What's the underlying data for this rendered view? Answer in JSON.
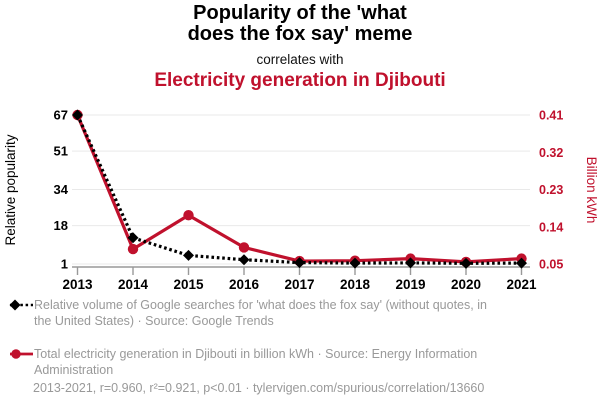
{
  "header": {
    "title_lines": [
      "Popularity of the 'what",
      "does the fox say' meme"
    ],
    "connector": "correlates with",
    "subtitle": "Electricity generation in Djibouti"
  },
  "chart_data": {
    "type": "line",
    "x": [
      2013,
      2014,
      2015,
      2016,
      2017,
      2018,
      2019,
      2020,
      2021
    ],
    "series": [
      {
        "name": "fox-search-popularity",
        "axis": "left",
        "color": "#000000",
        "style": "dotted",
        "marker": "diamond",
        "values": [
          67,
          12.6,
          4.8,
          2.9,
          1.6,
          1.4,
          1.5,
          1.3,
          1.4
        ]
      },
      {
        "name": "electricity-generation",
        "axis": "right",
        "color": "#c0112d",
        "style": "solid",
        "marker": "circle",
        "values": [
          0.41,
          0.086,
          0.168,
          0.09,
          0.057,
          0.058,
          0.063,
          0.055,
          0.063
        ]
      }
    ],
    "left_axis": {
      "label": "Relative popularity",
      "ticks": [
        1,
        18,
        34,
        51,
        67
      ],
      "range": [
        1,
        67
      ]
    },
    "right_axis": {
      "label": "Billion kWh",
      "ticks": [
        0.05,
        0.14,
        0.23,
        0.32,
        0.41
      ],
      "range": [
        0.05,
        0.41
      ]
    },
    "grid": true,
    "legend_position": "bottom"
  },
  "legend": {
    "entries": [
      {
        "label": "Relative volume of Google searches for 'what does the fox say' (without quotes, in the United States) · Source: Google Trends",
        "marker": "black-diamond-dotted"
      },
      {
        "label": "Total electricity generation in Djibouti in billion kWh · Source: Energy Information Administration",
        "marker": "red-circle-line"
      }
    ],
    "footnote": "2013-2021, r=0.960, r²=0.921, p<0.01 · tylervigen.com/spurious/correlation/13660"
  },
  "colors": {
    "accent_red": "#c0112d",
    "series_black": "#000000",
    "legend_gray": "#999999",
    "grid": "#e9e9e9",
    "axis": "#999999",
    "tick_text": "#000000"
  }
}
